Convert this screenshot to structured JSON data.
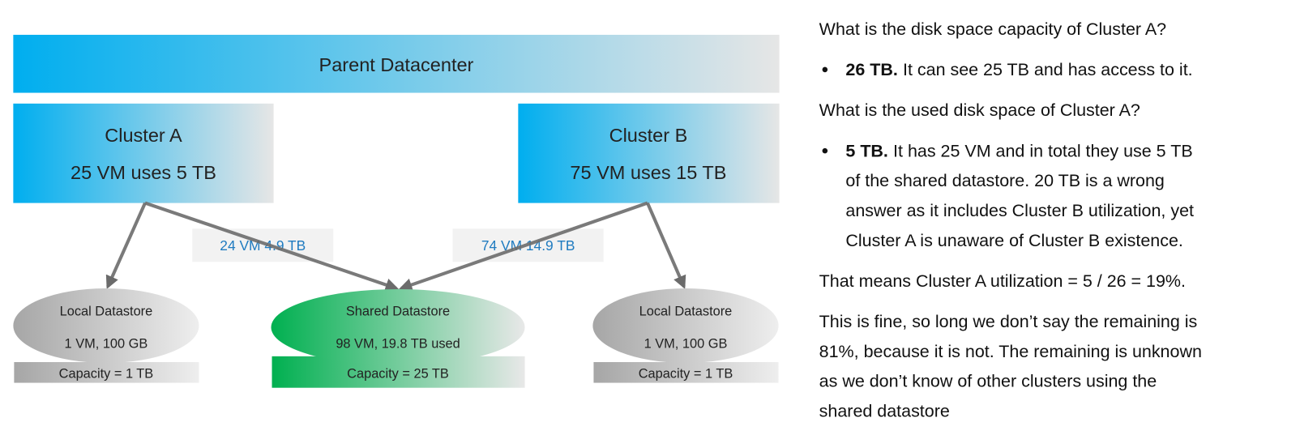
{
  "diagram": {
    "parent": "Parent Datacenter",
    "clusters": [
      {
        "name": "Cluster A",
        "usage": "25 VM uses 5 TB"
      },
      {
        "name": "Cluster B",
        "usage": "75 VM uses 15 TB"
      }
    ],
    "edge_labels": [
      "24 VM 4.9 TB",
      "74 VM 14.9 TB"
    ],
    "datastores": [
      {
        "name": "Local Datastore",
        "usage": "1 VM, 100 GB",
        "capacity": "Capacity = 1 TB"
      },
      {
        "name": "Shared Datastore",
        "usage": "98 VM, 19.8 TB used",
        "capacity": "Capacity = 25 TB"
      },
      {
        "name": "Local Datastore",
        "usage": "1 VM, 100 GB",
        "capacity": "Capacity = 1 TB"
      }
    ]
  },
  "notes": [
    {
      "lines": [
        "What is the disk space capacity of Cluster A?"
      ]
    },
    {
      "bold": "26 TB.",
      "lines": [
        "It can see 25 TB and has access to it."
      ]
    },
    {
      "lines": [
        "What is the used disk space of Cluster A?"
      ]
    },
    {
      "bold": "5 TB.",
      "lines": [
        "It has 25 VM and in total they use 5 TB",
        "of the shared datastore. 20 TB is a wrong",
        "answer as it includes Cluster B utilization, yet",
        "Cluster A is unaware of Cluster B existence."
      ]
    },
    {
      "lines": [
        "That means Cluster A utilization = 5 / 26 = 19%."
      ]
    },
    {
      "lines": [
        "This is fine, so long we don’t say the remaining is",
        "81%, because it is not. The remaining is unknown",
        "as we don’t know of other clusters using the",
        "shared datastore"
      ]
    }
  ]
}
